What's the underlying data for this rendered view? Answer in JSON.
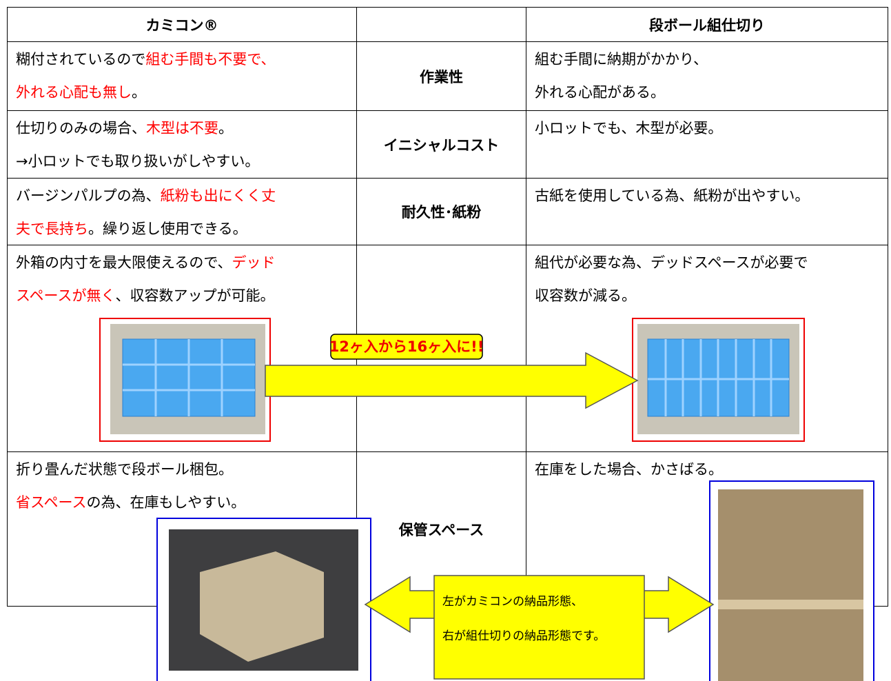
{
  "table": {
    "header": {
      "left": "カミコン®",
      "right": "段ボール組仕切り"
    },
    "rows": [
      {
        "label": "作業性",
        "left": [
          [
            "糊付されているので",
            {
              "text": "組む手間も不要で、",
              "color": "#ff0000"
            }
          ],
          [
            {
              "text": "外れる心配も無し",
              "color": "#ff0000"
            },
            "。"
          ]
        ],
        "right": [
          [
            "組む手間に納期がかかり、"
          ],
          [
            "外れる心配がある。"
          ]
        ]
      },
      {
        "label": "イニシャルコスト",
        "left": [
          [
            "仕切りのみの場合、",
            {
              "text": "木型は不要",
              "color": "#ff0000"
            },
            "。"
          ],
          [
            "→小ロットでも取り扱いがしやすい。"
          ]
        ],
        "right": [
          [
            "小ロットでも、木型が必要。"
          ]
        ]
      },
      {
        "label": "耐久性･紙粉",
        "left": [
          [
            "バージンパルプの為、",
            {
              "text": "紙粉も出にくく丈",
              "color": "#ff0000"
            }
          ],
          [
            {
              "text": "夫で長持ち",
              "color": "#ff0000"
            },
            "。繰り返し使用できる。"
          ]
        ],
        "right": [
          [
            "古紙を使用している為、紙粉が出やすい。"
          ]
        ]
      },
      {
        "left": [
          [
            "外箱の内寸を最大限使えるので、",
            {
              "text": "デッド",
              "color": "#ff0000"
            }
          ],
          [
            {
              "text": "スペースが無く",
              "color": "#ff0000"
            },
            "、収容数アップが可能。"
          ]
        ],
        "right": [
          [
            "組代が必要な為、デッドスペースが必要で"
          ],
          [
            "収容数が減る。"
          ]
        ]
      },
      {
        "label": "保管スペース",
        "left": [
          [
            "折り畳んだ状態で段ボール梱包。"
          ],
          [
            {
              "text": "省スペース",
              "color": "#ff0000"
            },
            "の為、在庫もしやすい。"
          ]
        ],
        "right": [
          [
            "在庫をした場合、かさばる。"
          ]
        ]
      }
    ]
  },
  "callouts": {
    "capacity": "12ヶ入から16ヶ入に!!",
    "delivery": [
      "左がカミコンの納品形態、",
      "右が組仕切りの納品形態です。"
    ]
  }
}
